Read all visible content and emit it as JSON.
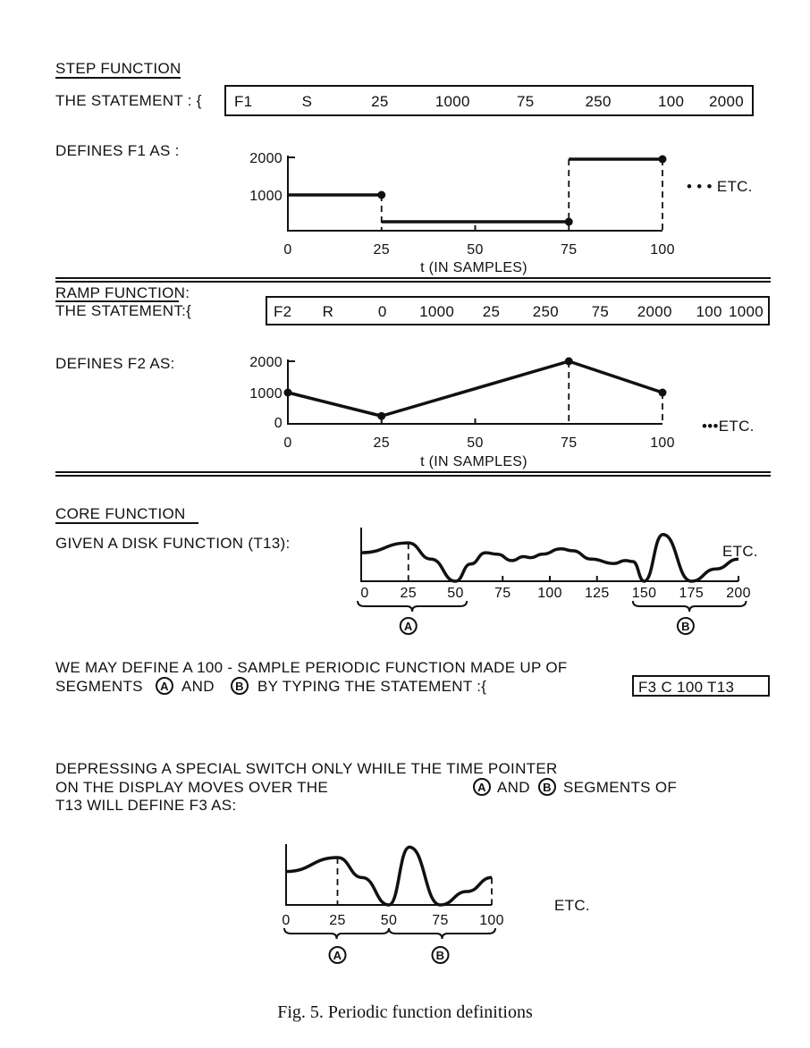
{
  "step": {
    "heading": "STEP FUNCTION",
    "statement_label": "THE STATEMENT : {",
    "statement_tokens": [
      "F1",
      "S",
      "25",
      "1000",
      "75",
      "250",
      "100",
      "2000"
    ],
    "defines_label": "DEFINES F1 AS :",
    "etc": "• • • ETC.",
    "xlabel": "t (IN SAMPLES)",
    "x_ticks": [
      "0",
      "25",
      "50",
      "75",
      "100"
    ],
    "y_ticks": [
      "2000",
      "1000"
    ]
  },
  "ramp": {
    "heading": "RAMP FUNCTION:",
    "statement_label": "THE STATEMENT:{",
    "statement_tokens": [
      "F2",
      "R",
      "0",
      "1000",
      "25",
      "250",
      "75",
      "2000",
      "100",
      "1000"
    ],
    "defines_label": "DEFINES F2 AS:",
    "etc": "•••ETC.",
    "xlabel": "t (IN SAMPLES)",
    "x_ticks": [
      "0",
      "25",
      "50",
      "75",
      "100"
    ],
    "y_ticks": [
      "2000",
      "1000",
      "0"
    ]
  },
  "core": {
    "heading": "CORE FUNCTION",
    "given_label": "GIVEN A DISK FUNCTION (T13):",
    "etc": "ETC.",
    "x_ticks": [
      "0",
      "25",
      "50",
      "75",
      "100",
      "125",
      "150",
      "175",
      "200"
    ],
    "segment_a": "A",
    "segment_b": "B",
    "para1_line1": "WE MAY DEFINE A 100 - SAMPLE PERIODIC FUNCTION MADE UP OF",
    "para1_line2_a": "SEGMENTS",
    "para1_line2_b": "AND",
    "para1_line2_c": "BY TYPING THE STATEMENT :{",
    "statement": "F3 C 100 T13",
    "para2_lines": [
      "DEPRESSING A SPECIAL SWITCH ONLY WHILE THE TIME POINTER",
      "ON THE DISPLAY MOVES OVER THE",
      "AND",
      "SEGMENTS OF",
      "T13 WILL DEFINE F3 AS:"
    ],
    "f3_etc": "ETC.",
    "f3_x_ticks": [
      "0",
      "25",
      "50",
      "75",
      "100"
    ]
  },
  "caption": {
    "fig": "Fig. 5.",
    "text": "Periodic function definitions"
  },
  "chart_data": [
    {
      "type": "line",
      "name_printed": "F1",
      "subtype": "step",
      "x": [
        0,
        25,
        75,
        100
      ],
      "segments": [
        {
          "from": 0,
          "to": 25,
          "value": 1000
        },
        {
          "from": 25,
          "to": 75,
          "value": 250
        },
        {
          "from": 75,
          "to": 100,
          "value": 2000
        }
      ],
      "xlim": [
        0,
        100
      ],
      "ylim": [
        0,
        2000
      ],
      "xlabel": "t (IN SAMPLES)"
    },
    {
      "type": "line",
      "name_printed": "F2",
      "subtype": "ramp",
      "x": [
        0,
        25,
        75,
        100
      ],
      "y": [
        1000,
        250,
        2000,
        1000
      ],
      "xlim": [
        0,
        100
      ],
      "ylim": [
        0,
        2000
      ],
      "xlabel": "t (IN SAMPLES)"
    },
    {
      "type": "line",
      "name_printed": "T13",
      "x": [
        0,
        25,
        37,
        50,
        58,
        66,
        72,
        80,
        86,
        90,
        96,
        106,
        112,
        122,
        134,
        140,
        144,
        150,
        160,
        175,
        188,
        200
      ],
      "y": [
        58,
        78,
        45,
        0,
        35,
        58,
        55,
        42,
        50,
        48,
        55,
        66,
        62,
        45,
        36,
        42,
        40,
        0,
        95,
        0,
        25,
        45
      ],
      "xlim": [
        0,
        200
      ]
    },
    {
      "type": "line",
      "name_printed": "F3",
      "x": [
        0,
        25,
        37,
        50,
        60,
        75,
        88,
        100
      ],
      "y": [
        55,
        78,
        45,
        0,
        95,
        0,
        22,
        45
      ],
      "xlim": [
        0,
        100
      ]
    }
  ]
}
